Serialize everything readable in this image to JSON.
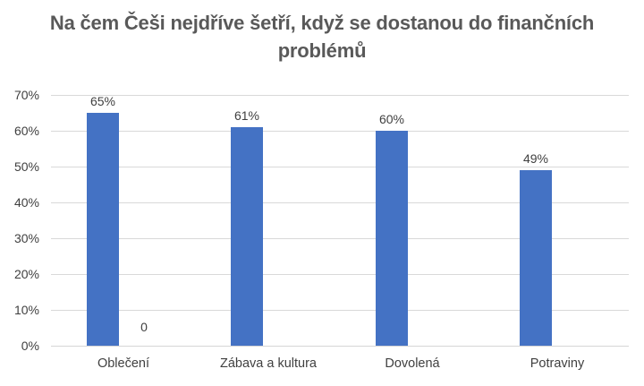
{
  "title": "Na čem Češi nejdříve šetří, když se dostanou do finančních problémů",
  "colors": {
    "bar": "#4472c4",
    "gridline": "#d9d9d9",
    "axis_text": "#404040",
    "title_text": "#595959"
  },
  "chart_data": {
    "type": "bar",
    "title": "Na čem Češi nejdříve šetří, když se dostanou do finančních problémů",
    "categories": [
      "Oblečení",
      "Zábava a kultura",
      "Dovolená",
      "Potraviny"
    ],
    "series": [
      {
        "name": "main",
        "values": [
          65,
          61,
          60,
          49
        ],
        "data_labels": [
          "65%",
          "61%",
          "60%",
          "49%"
        ]
      }
    ],
    "annotations": [
      {
        "text": "0",
        "category_index": 0,
        "note": "zero-value data label right of first category bar"
      }
    ],
    "xlabel": "",
    "ylabel": "",
    "ylim": [
      0,
      70
    ],
    "y_ticks": [
      "70%",
      "60%",
      "50%",
      "40%",
      "30%",
      "20%",
      "10%",
      "0%"
    ],
    "y_tick_values": [
      70,
      60,
      50,
      40,
      30,
      20,
      10,
      0
    ],
    "grid": true,
    "legend": "none"
  }
}
